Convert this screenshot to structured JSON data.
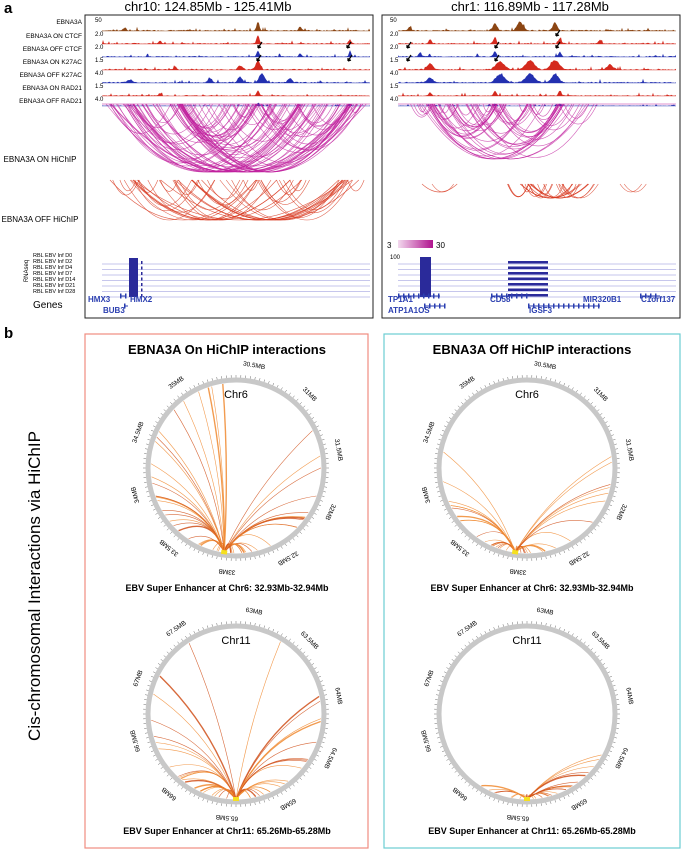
{
  "panel_a": {
    "letter": "a",
    "left": {
      "title": "chr10: 124.85Mb - 125.41Mb",
      "genes": [
        "HMX3",
        "HMX2",
        "BUB3"
      ]
    },
    "right": {
      "title": "chr1: 116.89Mb - 117.28Mb",
      "genes": [
        "TP1A1",
        "ATP1A1OS",
        "CD58",
        "IGSF3",
        "MIR320B1",
        "C1orf137"
      ],
      "colorbar_min": "3",
      "colorbar_max": "30"
    },
    "track_labels": [
      "EBNA3A",
      "EBNA3A ON CTCF",
      "EBNA3A OFF CTCF",
      "EBNA3A ON K27AC",
      "EBNA3A OFF K27AC",
      "EBNA3A ON RAD21",
      "EBNA3A OFF RAD21"
    ],
    "track_scales": [
      "50",
      "2.0",
      "2.0",
      "1.5",
      "4.0",
      "1.5",
      "4.0"
    ],
    "hichip_on_label": "EBNA3A ON HiChIP",
    "hichip_off_label": "EBNA3A OFF HiChIP",
    "rnaseq_label": "RNAseq",
    "rnaseq_scale": "100",
    "rnaseq_tracks": [
      "RBL EBV Inf D0",
      "RBL EBV Inf D2",
      "RBL EBV Inf D4",
      "RBL EBV Inf D7",
      "RBL EBV Inf D14",
      "RBL EBV Inf D21",
      "RBL EBV Inf D28"
    ],
    "genes_label": "Genes"
  },
  "panel_b": {
    "letter": "b",
    "y_title": "Cis-chromosomal Interactions via HiChIP",
    "on_title": "EBNA3A On HiChIP interactions",
    "off_title": "EBNA3A Off HiChIP interactions",
    "chr6": {
      "name": "Chr6",
      "ticks": [
        "30.5MB",
        "31MB",
        "31.5MB",
        "32MB",
        "32.5MB",
        "33MB",
        "33.5MB",
        "34MB",
        "34.5MB",
        "35MB"
      ],
      "caption": "EBV Super Enhancer at Chr6: 32.93Mb-32.94Mb"
    },
    "chr11": {
      "name": "Chr11",
      "ticks": [
        "63MB",
        "63.5MB",
        "64MB",
        "64.5MB",
        "65MB",
        "65.5MB",
        "66MB",
        "66.5MB",
        "67MB",
        "67.5MB"
      ],
      "caption": "EBV Super Enhancer at Chr11: 65.26Mb-65.28Mb"
    }
  },
  "colors": {
    "magenta": "#c0209e",
    "red_arc": "#d83a20",
    "brown": "#8b4513",
    "ctcf_red": "#d42a1e",
    "blue": "#2330b0",
    "gene_blue": "#2a3eb0",
    "orange": "#f08a30",
    "on_box": "#f08d80",
    "off_box": "#6ccdd2",
    "ring": "#c8c8c8",
    "anchor": "#f5e020"
  }
}
